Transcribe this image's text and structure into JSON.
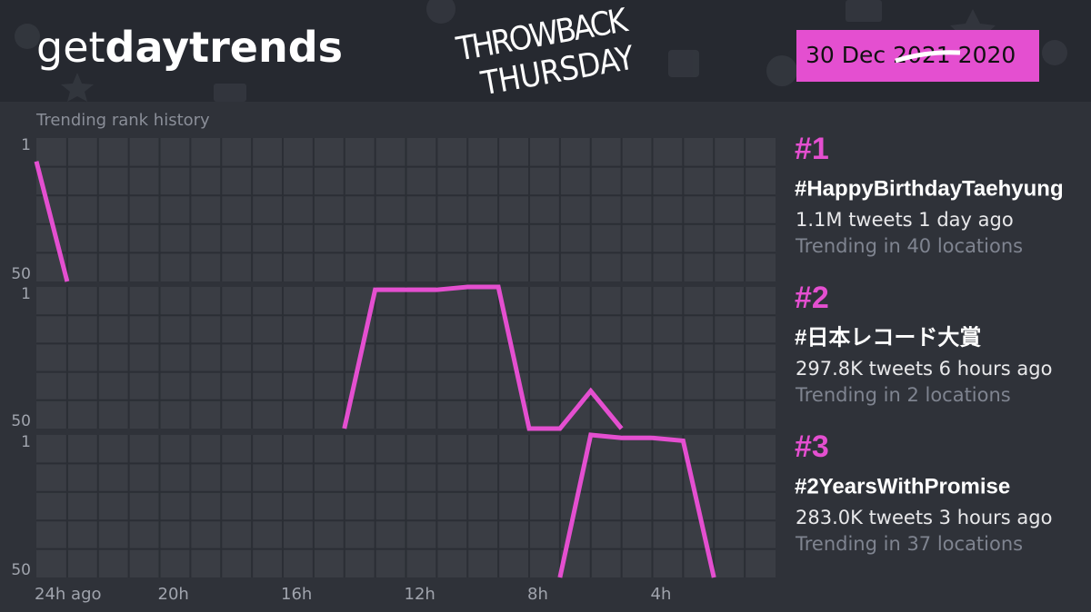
{
  "header": {
    "logo": {
      "light": "get",
      "bold": "daytrends"
    },
    "banner": [
      "THROWBACK",
      "THURSDAY"
    ],
    "date": {
      "day": "30 Dec",
      "struck_year": "2021",
      "year": "2020"
    }
  },
  "chart_data": [
    {
      "type": "line",
      "title": "Trending rank history",
      "x": [
        24,
        23
      ],
      "series": [
        {
          "color": "#e44fd0",
          "values": [
            9,
            50
          ]
        }
      ],
      "xlim": [
        24,
        0
      ],
      "ylim": [
        50,
        1
      ],
      "yticks": [
        1,
        50
      ]
    },
    {
      "type": "line",
      "x": [
        14,
        13,
        12,
        11,
        10,
        9,
        8,
        7,
        6,
        5
      ],
      "series": [
        {
          "color": "#e44fd0",
          "values": [
            50,
            2,
            2,
            2,
            1,
            1,
            50,
            50,
            37,
            50
          ]
        }
      ],
      "xlim": [
        24,
        0
      ],
      "ylim": [
        50,
        1
      ],
      "yticks": [
        1,
        50
      ]
    },
    {
      "type": "line",
      "x": [
        7,
        6,
        5,
        4,
        3,
        2
      ],
      "series": [
        {
          "color": "#e44fd0",
          "values": [
            50,
            1,
            2,
            2,
            3,
            50
          ]
        }
      ],
      "xlim": [
        24,
        0
      ],
      "ylim": [
        50,
        1
      ],
      "yticks": [
        1,
        50
      ],
      "xticks": [
        {
          "value": 24,
          "label": "24h ago"
        },
        {
          "value": 20,
          "label": "20h"
        },
        {
          "value": 16,
          "label": "16h"
        },
        {
          "value": 12,
          "label": "12h"
        },
        {
          "value": 8,
          "label": "8h"
        },
        {
          "value": 4,
          "label": "4h"
        }
      ]
    }
  ],
  "trends": [
    {
      "rank": "#1",
      "name": "#HappyBirthdayTaehyung",
      "stats": "1.1M tweets 1 day ago",
      "locations": "Trending in 40 locations"
    },
    {
      "rank": "#2",
      "name": "#日本レコード大賞",
      "stats": "297.8K tweets 6 hours ago",
      "locations": "Trending in 2 locations"
    },
    {
      "rank": "#3",
      "name": "#2YearsWithPromise",
      "stats": "283.0K tweets 3 hours ago",
      "locations": "Trending in 37 locations"
    }
  ]
}
